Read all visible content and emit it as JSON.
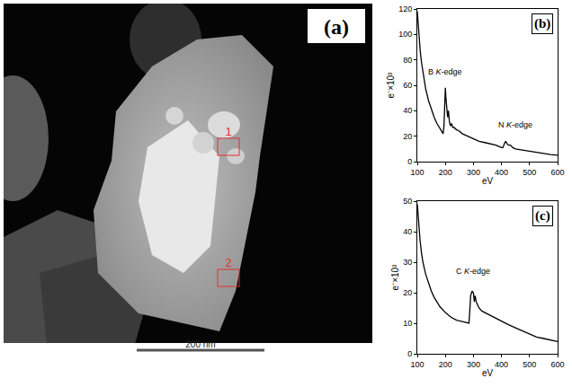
{
  "image_panel": {
    "label": "(a)",
    "regions": [
      "1",
      "2"
    ],
    "scale_bar": "200 nm"
  },
  "chart_data": [
    {
      "type": "line",
      "panel": "(b)",
      "xlabel": "eV",
      "ylabel": "e⁻×10³",
      "color": "#000000",
      "x": [
        100,
        105,
        110,
        115,
        120,
        130,
        140,
        150,
        160,
        170,
        180,
        188,
        192,
        195,
        198,
        200,
        202,
        205,
        208,
        211,
        214,
        218,
        222,
        226,
        230,
        240,
        250,
        260,
        270,
        280,
        290,
        300,
        320,
        340,
        360,
        380,
        400,
        405,
        410,
        415,
        420,
        425,
        432,
        440,
        450,
        475,
        500,
        525,
        550,
        575,
        600
      ],
      "values": [
        118,
        100,
        88,
        78,
        70,
        57,
        48,
        41,
        35,
        30,
        26,
        23,
        22,
        28,
        45,
        58,
        50,
        38,
        35,
        40,
        32,
        28,
        30,
        27,
        27,
        25,
        24,
        22,
        21,
        20,
        19,
        18,
        16,
        15,
        14,
        13,
        11,
        11,
        14,
        16,
        14,
        13,
        13,
        11,
        10,
        9,
        8,
        7,
        6,
        5.5,
        5
      ],
      "xlim": [
        100,
        600
      ],
      "xticks": [
        100,
        200,
        300,
        400,
        500,
        600
      ],
      "ylim": [
        0,
        120
      ],
      "yticks": [
        0,
        20,
        40,
        60,
        80,
        100,
        120
      ],
      "annotations": [
        {
          "text": "B K-edge",
          "x": 200,
          "y": 66
        },
        {
          "text": "N K-edge",
          "x": 450,
          "y": 24
        }
      ]
    },
    {
      "type": "line",
      "panel": "(c)",
      "xlabel": "eV",
      "ylabel": "e⁻×10³",
      "color": "#000000",
      "x": [
        100,
        105,
        110,
        115,
        120,
        130,
        140,
        150,
        160,
        170,
        180,
        200,
        220,
        240,
        260,
        280,
        284,
        287,
        290,
        295,
        300,
        303,
        306,
        310,
        320,
        330,
        340,
        360,
        380,
        400,
        425,
        450,
        475,
        500,
        525,
        550,
        575,
        600
      ],
      "values": [
        49,
        42,
        37,
        33,
        30,
        26,
        23,
        20.5,
        18.5,
        17,
        15.5,
        13.5,
        12,
        11,
        10.5,
        10,
        10,
        14,
        19,
        20.5,
        20,
        17,
        19,
        17,
        15,
        14,
        13.5,
        12.5,
        11.5,
        10.5,
        9.5,
        8.5,
        7.5,
        6.5,
        5.5,
        5,
        4.5,
        4
      ],
      "xlim": [
        100,
        600
      ],
      "xticks": [
        100,
        200,
        300,
        400,
        500,
        600
      ],
      "ylim": [
        0,
        50
      ],
      "yticks": [
        0,
        10,
        20,
        30,
        40,
        50
      ],
      "annotations": [
        {
          "text": "C K-edge",
          "x": 300,
          "y": 25
        }
      ]
    }
  ]
}
